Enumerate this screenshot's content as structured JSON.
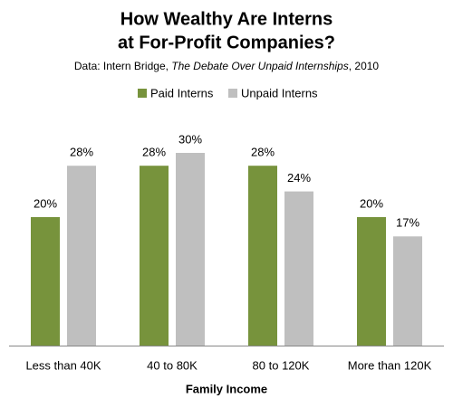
{
  "chart_data": {
    "type": "bar",
    "title": [
      "How Wealthy Are Interns",
      "at For-Profit Companies?"
    ],
    "subtitle": [
      "Data: Intern Bridge, ",
      "The Debate Over Unpaid Internships",
      ", 2010"
    ],
    "x_label": "Family Income",
    "categories": [
      "Less than 40K",
      "40 to 80K",
      "80 to 120K",
      "More than 120K"
    ],
    "series": [
      {
        "name": "Paid Interns",
        "color": "#77933c",
        "values": [
          20,
          28,
          28,
          20
        ],
        "value_labels": [
          "20%",
          "28%",
          "28%",
          "20%"
        ]
      },
      {
        "name": "Unpaid Interns",
        "color": "#bfbfbf",
        "values": [
          28,
          30,
          24,
          17
        ],
        "value_labels": [
          "28%",
          "30%",
          "24%",
          "17%"
        ]
      }
    ],
    "legend": "top"
  }
}
